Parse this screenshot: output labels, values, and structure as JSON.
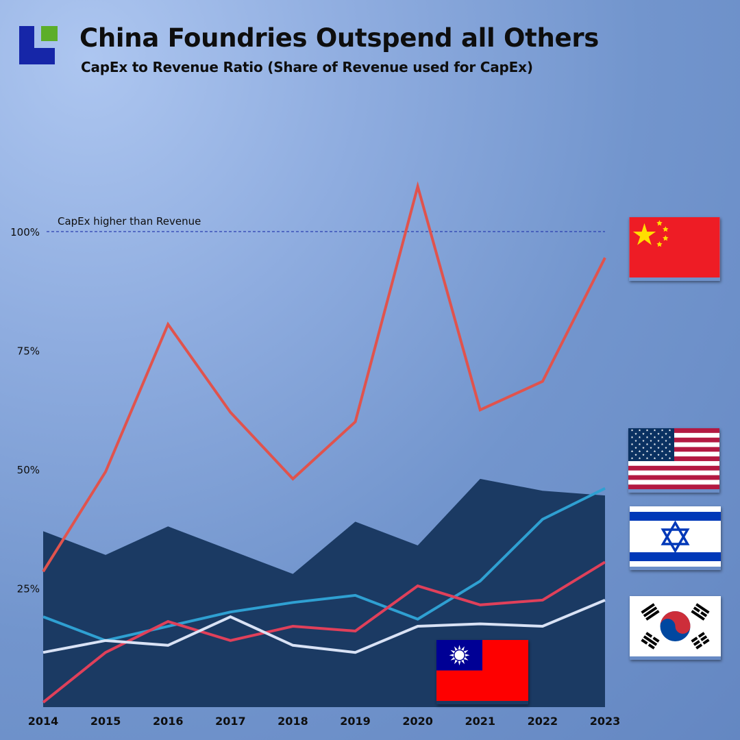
{
  "header": {
    "title": "China Foundries Outspend all Others",
    "subtitle": "CapEx to Revenue Ratio (Share of Revenue used for CapEx)"
  },
  "flags": {
    "china": "china-flag-icon",
    "usa": "usa-flag-icon",
    "israel": "israel-flag-icon",
    "south_korea": "south-korea-flag-icon",
    "taiwan": "taiwan-flag-icon"
  },
  "chart_data": {
    "type": "line",
    "title": "China Foundries Outspend all Others",
    "subtitle": "CapEx to Revenue Ratio (Share of Revenue used for CapEx)",
    "xlabel": "",
    "ylabel": "",
    "x": [
      "2014",
      "2015",
      "2016",
      "2017",
      "2018",
      "2019",
      "2020",
      "2021",
      "2022",
      "2023"
    ],
    "ylim": [
      0,
      125
    ],
    "y_ticks": [
      25,
      50,
      75,
      100
    ],
    "y_tick_labels": [
      "25%",
      "50%",
      "75%",
      "100%"
    ],
    "grid": false,
    "reference_line": {
      "value": 100,
      "label": "CapEx higher than Revenue"
    },
    "series": [
      {
        "name": "",
        "kind": "area",
        "color": "#1b3a63",
        "values": [
          37,
          32,
          38,
          33,
          28,
          39,
          34,
          48,
          45.5,
          44.5
        ]
      },
      {
        "name": "",
        "kind": "line",
        "color": "#e0534d",
        "values": [
          28.5,
          49.5,
          80.5,
          62,
          48,
          60,
          109.5,
          62.5,
          68.5,
          94.5
        ]
      },
      {
        "name": "",
        "kind": "line",
        "color": "#2fa0d2",
        "values": [
          19,
          14,
          17,
          20,
          22,
          23.5,
          18.5,
          26.5,
          39.5,
          46
        ]
      },
      {
        "name": "",
        "kind": "line",
        "color": "#e0405a",
        "values": [
          1,
          11.5,
          18,
          14,
          17,
          16,
          25.5,
          21.5,
          22.5,
          30.5
        ]
      },
      {
        "name": "",
        "kind": "line",
        "color": "#d9e2f5",
        "values": [
          11.5,
          14,
          13,
          19,
          13,
          11.5,
          17,
          17.5,
          17,
          22.5
        ]
      }
    ]
  }
}
